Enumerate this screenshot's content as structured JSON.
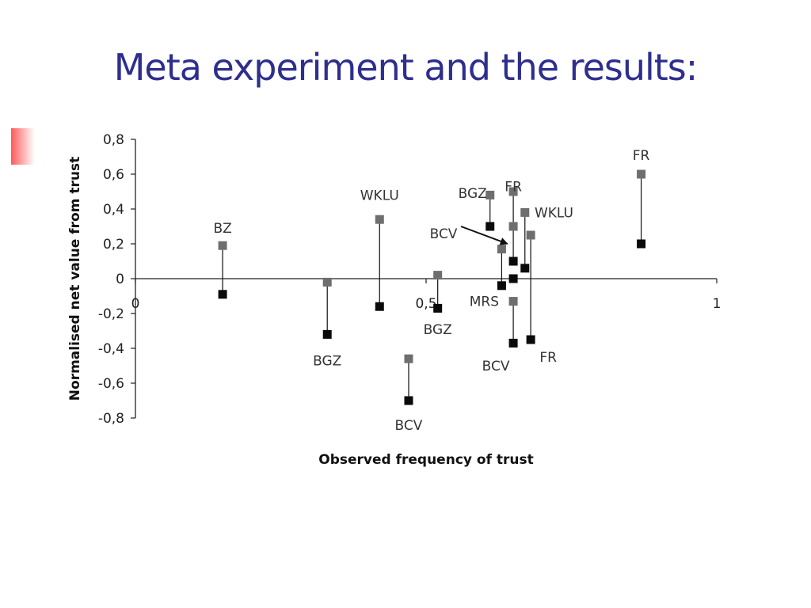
{
  "title": "Meta experiment and the results:",
  "chart_data": {
    "type": "scatter",
    "xlabel": "Observed frequency of trust",
    "ylabel": "Normalised net value from trust",
    "xlim": [
      0,
      1
    ],
    "ylim": [
      -0.8,
      0.8
    ],
    "x_ticks": [
      "0",
      "0,5",
      "1"
    ],
    "y_ticks": [
      "0,8",
      "0,6",
      "0,4",
      "0,2",
      "0",
      "-0,2",
      "-0,4",
      "-0,6",
      "-0,8"
    ],
    "series": [
      {
        "color": "#6e6e6e",
        "points": [
          [
            0.15,
            0.19
          ],
          [
            0.33,
            -0.02
          ],
          [
            0.42,
            0.34
          ],
          [
            0.47,
            -0.46
          ],
          [
            0.52,
            0.02
          ],
          [
            0.61,
            0.48
          ],
          [
            0.63,
            0.17
          ],
          [
            0.65,
            0.5
          ],
          [
            0.65,
            0.3
          ],
          [
            0.65,
            -0.13
          ],
          [
            0.67,
            0.38
          ],
          [
            0.68,
            0.25
          ],
          [
            0.87,
            0.6
          ]
        ]
      },
      {
        "color": "#0a0a0a",
        "points": [
          [
            0.15,
            -0.09
          ],
          [
            0.33,
            -0.32
          ],
          [
            0.42,
            -0.16
          ],
          [
            0.47,
            -0.7
          ],
          [
            0.52,
            -0.17
          ],
          [
            0.61,
            0.3
          ],
          [
            0.63,
            -0.04
          ],
          [
            0.65,
            0.1
          ],
          [
            0.65,
            0.0
          ],
          [
            0.65,
            -0.37
          ],
          [
            0.67,
            0.06
          ],
          [
            0.68,
            -0.35
          ],
          [
            0.87,
            0.2
          ]
        ]
      }
    ],
    "connections": [
      [
        [
          0.15,
          0.19
        ],
        [
          0.15,
          -0.09
        ]
      ],
      [
        [
          0.33,
          -0.02
        ],
        [
          0.33,
          -0.32
        ]
      ],
      [
        [
          0.42,
          0.34
        ],
        [
          0.42,
          -0.16
        ]
      ],
      [
        [
          0.47,
          -0.46
        ],
        [
          0.47,
          -0.7
        ]
      ],
      [
        [
          0.52,
          0.02
        ],
        [
          0.52,
          -0.17
        ]
      ],
      [
        [
          0.61,
          0.48
        ],
        [
          0.61,
          0.3
        ]
      ],
      [
        [
          0.63,
          0.17
        ],
        [
          0.63,
          -0.04
        ]
      ],
      [
        [
          0.65,
          0.5
        ],
        [
          0.65,
          0.1
        ]
      ],
      [
        [
          0.65,
          -0.13
        ],
        [
          0.65,
          -0.37
        ]
      ],
      [
        [
          0.67,
          0.38
        ],
        [
          0.67,
          0.06
        ]
      ],
      [
        [
          0.68,
          0.25
        ],
        [
          0.68,
          -0.35
        ]
      ],
      [
        [
          0.87,
          0.6
        ],
        [
          0.87,
          0.2
        ]
      ]
    ],
    "annotations": [
      {
        "text": "BZ",
        "x": 0.15,
        "y": 0.29
      },
      {
        "text": "BGZ",
        "x": 0.33,
        "y": -0.47
      },
      {
        "text": "WKLU",
        "x": 0.42,
        "y": 0.48
      },
      {
        "text": "BCV",
        "x": 0.47,
        "y": -0.84
      },
      {
        "text": "BGZ",
        "x": 0.52,
        "y": -0.29
      },
      {
        "text": "BGZ",
        "x": 0.58,
        "y": 0.49
      },
      {
        "text": "BCV",
        "x": 0.53,
        "y": 0.26
      },
      {
        "text": "FR",
        "x": 0.65,
        "y": 0.53
      },
      {
        "text": "WKLU",
        "x": 0.72,
        "y": 0.38
      },
      {
        "text": "MRS",
        "x": 0.6,
        "y": -0.13
      },
      {
        "text": "BCV",
        "x": 0.62,
        "y": -0.5
      },
      {
        "text": "FR",
        "x": 0.71,
        "y": -0.45
      },
      {
        "text": "FR",
        "x": 0.87,
        "y": 0.71
      }
    ],
    "arrow": {
      "from": [
        0.56,
        0.3
      ],
      "to": [
        0.64,
        0.2
      ]
    }
  }
}
